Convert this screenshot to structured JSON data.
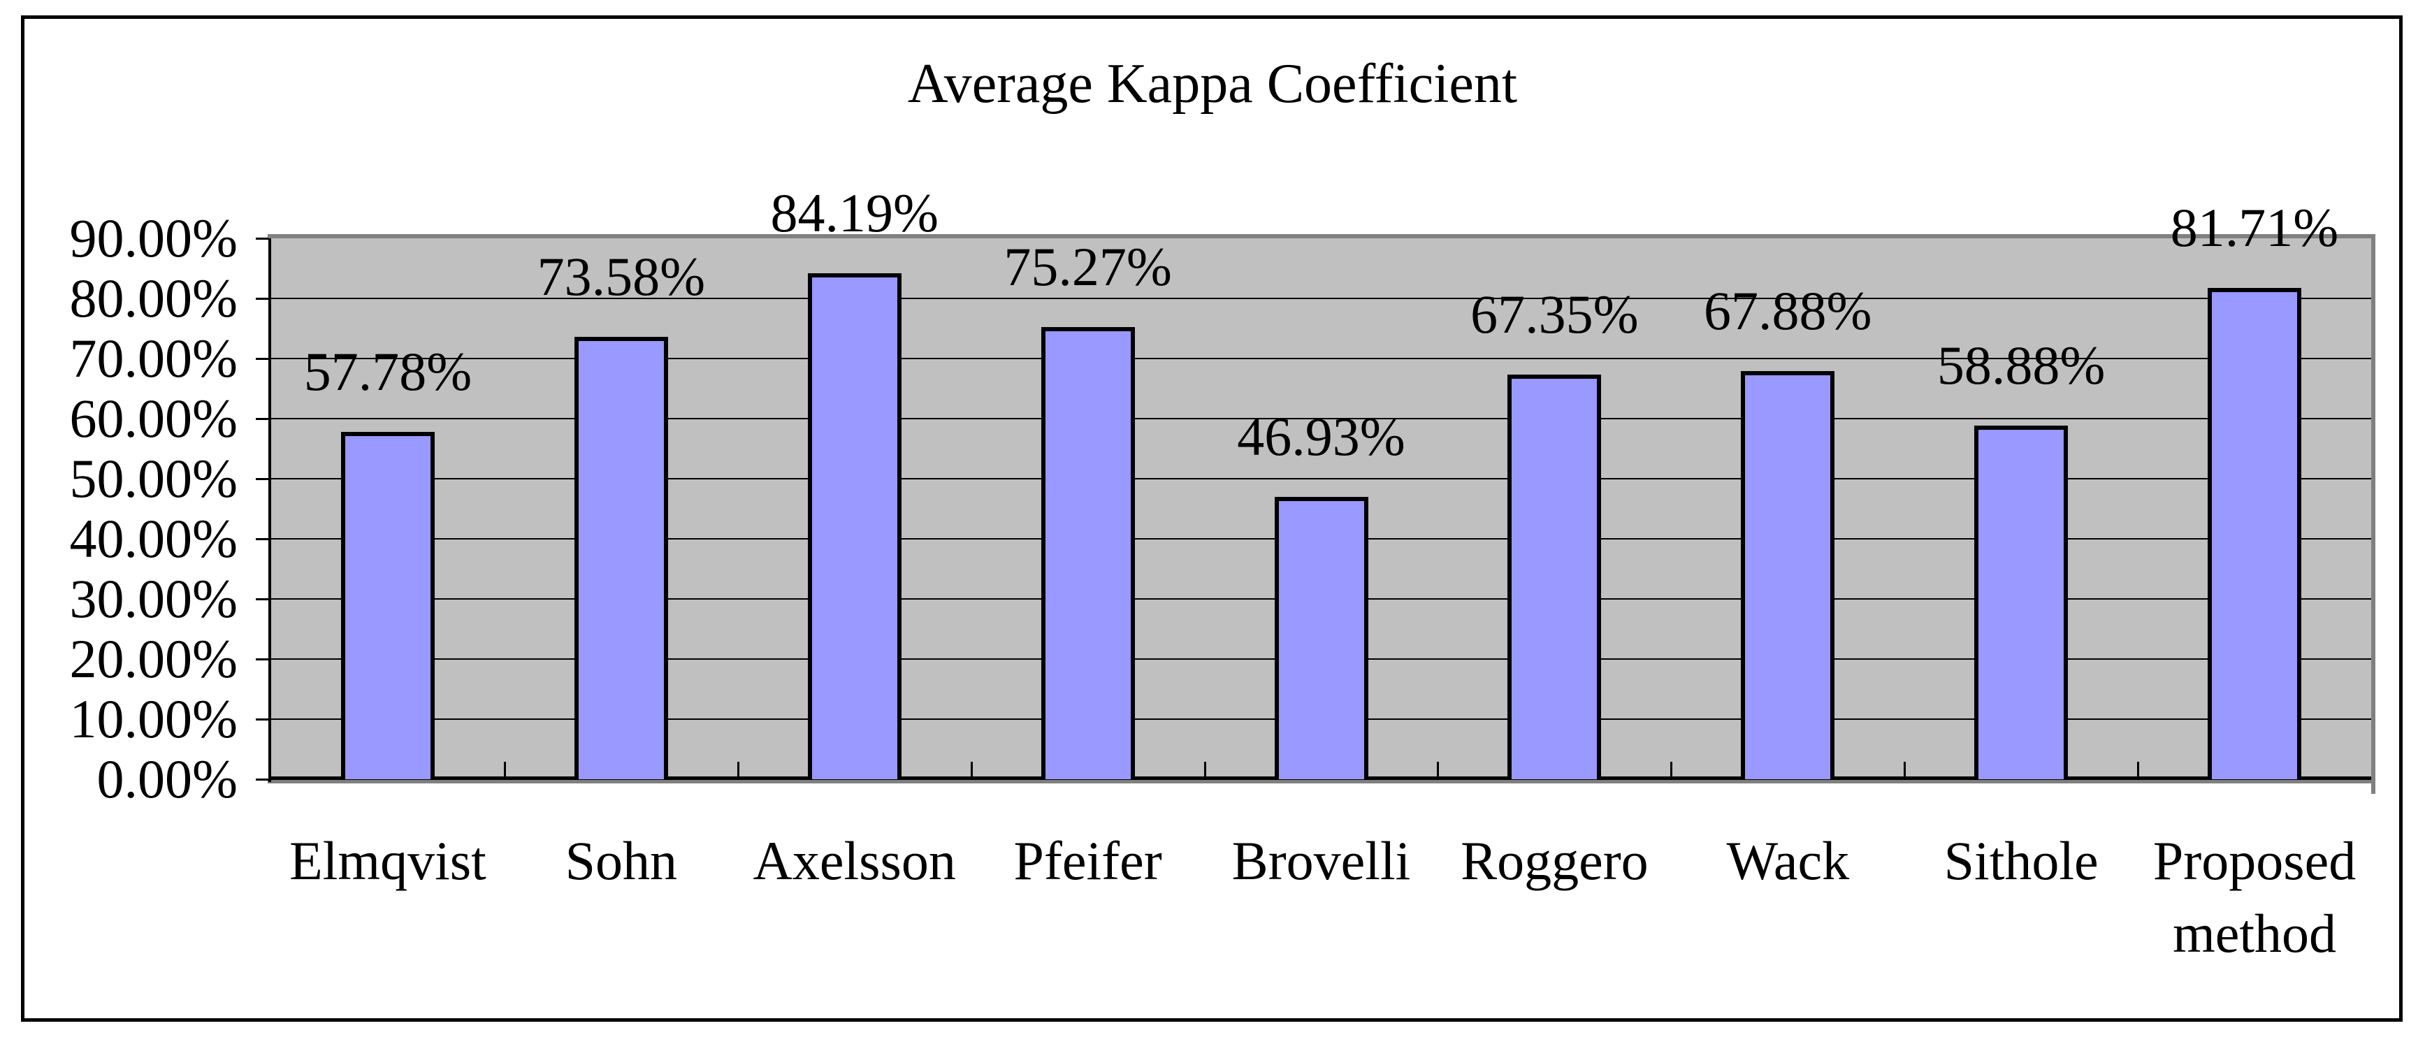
{
  "chart_data": {
    "type": "bar",
    "title": "Average Kappa Coefficient",
    "categories": [
      "Elmqvist",
      "Sohn",
      "Axelsson",
      "Pfeifer",
      "Brovelli",
      "Roggero",
      "Wack",
      "Sithole",
      "Proposed method"
    ],
    "values": [
      57.78,
      73.58,
      84.19,
      75.27,
      46.93,
      67.35,
      67.88,
      58.88,
      81.71
    ],
    "data_labels": [
      "57.78%",
      "73.58%",
      "84.19%",
      "75.27%",
      "46.93%",
      "67.35%",
      "67.88%",
      "58.88%",
      "81.71%"
    ],
    "xlabel": "",
    "ylabel": "",
    "ylim": [
      0,
      90
    ],
    "y_tick_step": 10,
    "y_tick_labels": [
      "0.00%",
      "10.00%",
      "20.00%",
      "30.00%",
      "40.00%",
      "50.00%",
      "60.00%",
      "70.00%",
      "80.00%",
      "90.00%"
    ],
    "grid": true,
    "legend": "none",
    "colors": {
      "bar_fill": "#9999FF",
      "bar_border": "#000000",
      "plot_background": "#C0C0C0",
      "plot_border": "#808080",
      "gridline": "#000000",
      "axis": "#000000",
      "text": "#000000",
      "figure_background": "#FFFFFF",
      "figure_border": "#000000"
    }
  }
}
